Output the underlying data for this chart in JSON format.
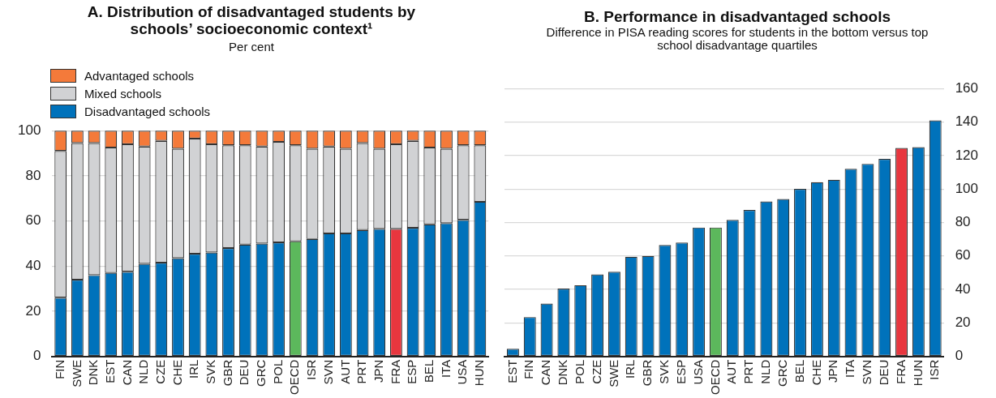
{
  "chart_data": [
    {
      "type": "bar",
      "title": "A. Distribution of disadvantaged students by schools’ socioeconomic context¹",
      "subtitle": "Per cent",
      "stacked": true,
      "legend": "top left",
      "grid": "y",
      "categories": [
        "FIN",
        "SWE",
        "DNK",
        "EST",
        "CAN",
        "NLD",
        "CZE",
        "CHE",
        "IRL",
        "SVK",
        "GBR",
        "DEU",
        "GRC",
        "POL",
        "OECD",
        "ISR",
        "SVN",
        "AUT",
        "PRT",
        "JPN",
        "FRA",
        "ESP",
        "BEL",
        "ITA",
        "USA",
        "HUN"
      ],
      "series": [
        {
          "name": "Disadvantaged schools",
          "color": "#0072bb",
          "colors": [
            "#0072bb",
            "#0072bb",
            "#0072bb",
            "#0072bb",
            "#0072bb",
            "#0072bb",
            "#0072bb",
            "#0072bb",
            "#0072bb",
            "#0072bb",
            "#0072bb",
            "#0072bb",
            "#0072bb",
            "#0072bb",
            "#5cb85c",
            "#0072bb",
            "#0072bb",
            "#0072bb",
            "#0072bb",
            "#0072bb",
            "#e8363e",
            "#0072bb",
            "#0072bb",
            "#0072bb",
            "#0072bb",
            "#0072bb"
          ],
          "values": [
            26,
            34,
            36,
            37,
            37.5,
            41,
            41.5,
            43.5,
            45.5,
            46,
            48,
            49.5,
            50,
            50.5,
            51,
            52,
            54.5,
            54.5,
            56,
            56.5,
            56.5,
            57,
            58.5,
            59,
            60.5,
            68.5
          ]
        },
        {
          "name": "Mixed schools",
          "color": "#d1d2d4",
          "values": [
            65,
            60.5,
            58.5,
            55.5,
            56.5,
            52,
            54,
            48.5,
            51,
            48,
            45.5,
            44,
            43,
            44.5,
            42.5,
            40,
            38.5,
            37.5,
            38.5,
            35.5,
            37.5,
            38.5,
            34,
            33,
            33,
            25
          ]
        },
        {
          "name": "Advantaged schools",
          "color": "#f47a3a",
          "values": [
            9,
            5.5,
            5.5,
            7.5,
            6,
            7,
            4.5,
            8,
            3.5,
            6,
            6.5,
            6.5,
            7,
            5,
            6.5,
            8,
            7,
            8,
            5.5,
            8,
            6,
            4.5,
            7.5,
            8,
            6.5,
            6.5
          ]
        }
      ],
      "ylim": [
        0,
        100
      ],
      "yticks": [
        0,
        20,
        40,
        60,
        80,
        100
      ]
    },
    {
      "type": "bar",
      "title": "B. Performance in disadvantaged schools",
      "subtitle": "Difference in PISA reading scores for students in the bottom versus top school disadvantage quartiles",
      "grid": "y",
      "categories": [
        "EST",
        "FIN",
        "CAN",
        "DNK",
        "POL",
        "CZE",
        "SWE",
        "IRL",
        "GBR",
        "SVK",
        "ESP",
        "USA",
        "OECD",
        "AUT",
        "PRT",
        "NLD",
        "GRC",
        "BEL",
        "CHE",
        "JPN",
        "ITA",
        "SVN",
        "DEU",
        "FRA",
        "HUN",
        "ISR"
      ],
      "values": [
        4.5,
        23.5,
        31.5,
        40.5,
        42.5,
        49,
        50.5,
        59.5,
        60,
        66.5,
        68,
        77,
        77,
        81.5,
        87.5,
        92.5,
        94,
        100,
        104,
        105.5,
        112,
        115,
        118,
        124.5,
        125,
        141
      ],
      "colors": [
        "#0072bb",
        "#0072bb",
        "#0072bb",
        "#0072bb",
        "#0072bb",
        "#0072bb",
        "#0072bb",
        "#0072bb",
        "#0072bb",
        "#0072bb",
        "#0072bb",
        "#0072bb",
        "#5cb85c",
        "#0072bb",
        "#0072bb",
        "#0072bb",
        "#0072bb",
        "#0072bb",
        "#0072bb",
        "#0072bb",
        "#0072bb",
        "#0072bb",
        "#0072bb",
        "#e8363e",
        "#0072bb",
        "#0072bb"
      ],
      "ylim": [
        0,
        160
      ],
      "yticks": [
        0,
        20,
        40,
        60,
        80,
        100,
        120,
        140,
        160
      ]
    }
  ]
}
